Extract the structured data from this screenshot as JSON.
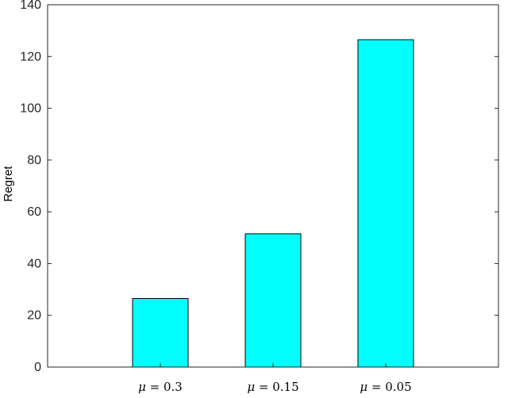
{
  "chart_data": {
    "type": "bar",
    "categories": [
      "μ = 0.3",
      "μ = 0.15",
      "μ = 0.05"
    ],
    "category_parts": [
      {
        "symbol": "μ",
        "rest": " = 0.3"
      },
      {
        "symbol": "μ",
        "rest": " = 0.15"
      },
      {
        "symbol": "μ",
        "rest": " = 0.05"
      }
    ],
    "values": [
      26.5,
      51.5,
      126.5
    ],
    "title": "",
    "xlabel": "",
    "ylabel": "Regret",
    "ylim": [
      0,
      140
    ],
    "yticks": [
      0,
      20,
      40,
      60,
      80,
      100,
      120,
      140
    ],
    "grid": false,
    "legend": "none",
    "bar_color": "#00FFFF",
    "bar_edge_color": "#000000"
  }
}
